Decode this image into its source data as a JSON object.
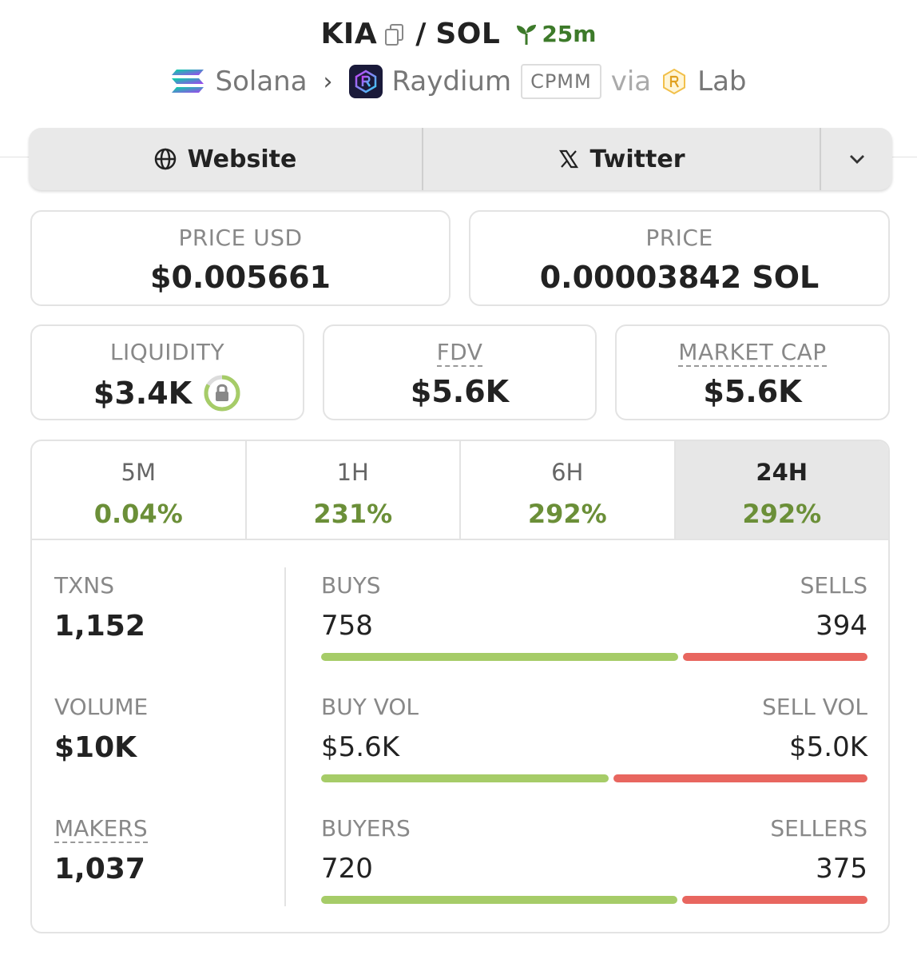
{
  "header": {
    "base_symbol": "KIA",
    "separator": "/",
    "quote_symbol": "SOL",
    "age": "25m",
    "chain": "Solana",
    "dex": "Raydium",
    "pool_type": "CPMM",
    "via_label": "via",
    "launchpad": "Lab"
  },
  "links": {
    "website_label": "Website",
    "twitter_label": "Twitter"
  },
  "price_usd": {
    "label": "PRICE USD",
    "value": "$0.005661"
  },
  "price_native": {
    "label": "PRICE",
    "value": "0.00003842 SOL"
  },
  "liquidity": {
    "label": "LIQUIDITY",
    "value": "$3.4K"
  },
  "fdv": {
    "label": "FDV",
    "value": "$5.6K"
  },
  "market_cap": {
    "label": "MARKET CAP",
    "value": "$5.6K"
  },
  "periods": [
    {
      "label": "5M",
      "change": "0.04%"
    },
    {
      "label": "1H",
      "change": "231%"
    },
    {
      "label": "6H",
      "change": "292%"
    },
    {
      "label": "24H",
      "change": "292%"
    }
  ],
  "active_period": "24H",
  "stats": {
    "txns": {
      "label": "TXNS",
      "value": "1,152"
    },
    "volume": {
      "label": "VOLUME",
      "value": "$10K"
    },
    "makers": {
      "label": "MAKERS",
      "value": "1,037"
    },
    "buys": {
      "label": "BUYS",
      "value": "758",
      "sell_label": "SELLS",
      "sell_value": "394",
      "buy_fraction": 0.658
    },
    "buy_vol": {
      "label": "BUY VOL",
      "value": "$5.6K",
      "sell_label": "SELL VOL",
      "sell_value": "$5.0K",
      "buy_fraction": 0.53
    },
    "buyers": {
      "label": "BUYERS",
      "value": "720",
      "sell_label": "SELLERS",
      "sell_value": "375",
      "buy_fraction": 0.657
    }
  },
  "colors": {
    "positive": "#6b8f38",
    "buy_bar": "#a6cc68",
    "sell_bar": "#e8665f",
    "age": "#3d7a2a"
  }
}
